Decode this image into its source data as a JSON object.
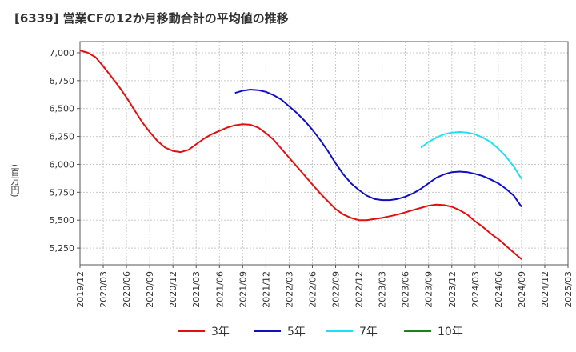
{
  "title": "[6339]  営業CFの12か月移動合計の平均値の推移",
  "chart_data": {
    "type": "line",
    "title": "[6339]  営業CFの12か月移動合計の平均値の推移",
    "ylabel": "(百万円)",
    "xlabel": "",
    "ylim": [
      5100,
      7100
    ],
    "y_ticks": [
      5250,
      5500,
      5750,
      6000,
      6250,
      6500,
      6750,
      7000
    ],
    "y_tick_labels": [
      "5,250",
      "5,500",
      "5,750",
      "6,000",
      "6,250",
      "6,500",
      "6,750",
      "7,000"
    ],
    "x_tick_labels": [
      "2019/12",
      "2020/03",
      "2020/06",
      "2020/09",
      "2020/12",
      "2021/03",
      "2021/06",
      "2021/09",
      "2021/12",
      "2022/03",
      "2022/06",
      "2022/09",
      "2022/12",
      "2023/03",
      "2023/06",
      "2023/09",
      "2023/12",
      "2024/03",
      "2024/06",
      "2024/09",
      "2024/12",
      "2025/03"
    ],
    "grid": true,
    "legend_position": "bottom",
    "series": [
      {
        "name": "3年",
        "color": "#e01010",
        "x": [
          "2019/12",
          "2020/01",
          "2020/02",
          "2020/03",
          "2020/04",
          "2020/05",
          "2020/06",
          "2020/07",
          "2020/08",
          "2020/09",
          "2020/10",
          "2020/11",
          "2020/12",
          "2021/01",
          "2021/02",
          "2021/03",
          "2021/04",
          "2021/05",
          "2021/06",
          "2021/07",
          "2021/08",
          "2021/09",
          "2021/10",
          "2021/11",
          "2021/12",
          "2022/01",
          "2022/02",
          "2022/03",
          "2022/04",
          "2022/05",
          "2022/06",
          "2022/07",
          "2022/08",
          "2022/09",
          "2022/10",
          "2022/11",
          "2022/12",
          "2023/01",
          "2023/02",
          "2023/03",
          "2023/04",
          "2023/05",
          "2023/06",
          "2023/07",
          "2023/08",
          "2023/09",
          "2023/10",
          "2023/11",
          "2023/12",
          "2024/01",
          "2024/02",
          "2024/03",
          "2024/04",
          "2024/05",
          "2024/06",
          "2024/07",
          "2024/08",
          "2024/09"
        ],
        "values": [
          7020,
          7000,
          6960,
          6880,
          6790,
          6700,
          6600,
          6490,
          6380,
          6290,
          6210,
          6150,
          6120,
          6110,
          6130,
          6180,
          6230,
          6270,
          6300,
          6330,
          6350,
          6360,
          6355,
          6330,
          6280,
          6220,
          6140,
          6060,
          5980,
          5900,
          5820,
          5740,
          5670,
          5600,
          5550,
          5520,
          5500,
          5500,
          5510,
          5520,
          5535,
          5550,
          5570,
          5590,
          5610,
          5630,
          5640,
          5635,
          5620,
          5590,
          5550,
          5490,
          5440,
          5380,
          5330,
          5270,
          5210,
          5150
        ]
      },
      {
        "name": "5年",
        "color": "#1010c0",
        "x": [
          "2021/08",
          "2021/09",
          "2021/10",
          "2021/11",
          "2021/12",
          "2022/01",
          "2022/02",
          "2022/03",
          "2022/04",
          "2022/05",
          "2022/06",
          "2022/07",
          "2022/08",
          "2022/09",
          "2022/10",
          "2022/11",
          "2022/12",
          "2023/01",
          "2023/02",
          "2023/03",
          "2023/04",
          "2023/05",
          "2023/06",
          "2023/07",
          "2023/08",
          "2023/09",
          "2023/10",
          "2023/11",
          "2023/12",
          "2024/01",
          "2024/02",
          "2024/03",
          "2024/04",
          "2024/05",
          "2024/06",
          "2024/07",
          "2024/08",
          "2024/09"
        ],
        "values": [
          6640,
          6660,
          6670,
          6665,
          6650,
          6620,
          6580,
          6520,
          6460,
          6390,
          6310,
          6220,
          6120,
          6010,
          5910,
          5830,
          5770,
          5720,
          5690,
          5680,
          5680,
          5690,
          5710,
          5740,
          5780,
          5830,
          5880,
          5910,
          5930,
          5935,
          5930,
          5915,
          5895,
          5865,
          5830,
          5780,
          5720,
          5620
        ]
      },
      {
        "name": "7年",
        "color": "#20e0f0",
        "x": [
          "2023/08",
          "2023/09",
          "2023/10",
          "2023/11",
          "2023/12",
          "2024/01",
          "2024/02",
          "2024/03",
          "2024/04",
          "2024/05",
          "2024/06",
          "2024/07",
          "2024/08",
          "2024/09"
        ],
        "values": [
          6150,
          6200,
          6240,
          6270,
          6285,
          6290,
          6285,
          6270,
          6240,
          6200,
          6140,
          6070,
          5980,
          5870
        ]
      },
      {
        "name": "10年",
        "color": "#208020",
        "x": [],
        "values": []
      }
    ]
  }
}
